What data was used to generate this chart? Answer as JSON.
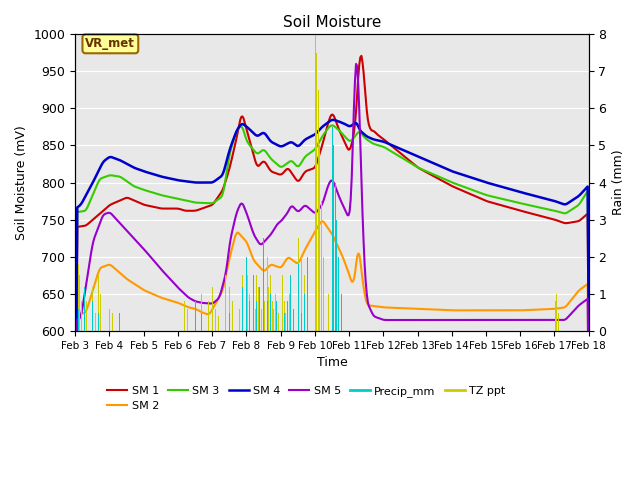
{
  "title": "Soil Moisture",
  "xlabel": "Time",
  "ylabel_left": "Soil Moisture (mV)",
  "ylabel_right": "Rain (mm)",
  "ylim_left": [
    600,
    1000
  ],
  "ylim_right": [
    0.0,
    8.0
  ],
  "yticks_left": [
    600,
    650,
    700,
    750,
    800,
    850,
    900,
    950,
    1000
  ],
  "yticks_right": [
    0.0,
    1.0,
    2.0,
    3.0,
    4.0,
    5.0,
    6.0,
    7.0,
    8.0
  ],
  "background_color": "#e8e8e8",
  "legend_box_color": "#ffff99",
  "legend_box_edge": "#996600",
  "annotation_text": "VR_met",
  "annotation_color": "#663300",
  "colors": {
    "SM1": "#cc0000",
    "SM2": "#ff9900",
    "SM3": "#33cc00",
    "SM4": "#0000cc",
    "SM5": "#9900cc",
    "Precip_mm": "#00cccc",
    "TZ_ppt": "#cccc00"
  },
  "x_ticks": [
    "Feb 3",
    "Feb 4",
    "Feb 5",
    "Feb 6",
    "Feb 7",
    "Feb 8",
    "Feb 9",
    "Feb 10",
    "Feb 11",
    "Feb 12",
    "Feb 13",
    "Feb 14",
    "Feb 15",
    "Feb 16",
    "Feb 17",
    "Feb 18"
  ],
  "n_points": 480,
  "figsize": [
    6.4,
    4.8
  ],
  "dpi": 100
}
